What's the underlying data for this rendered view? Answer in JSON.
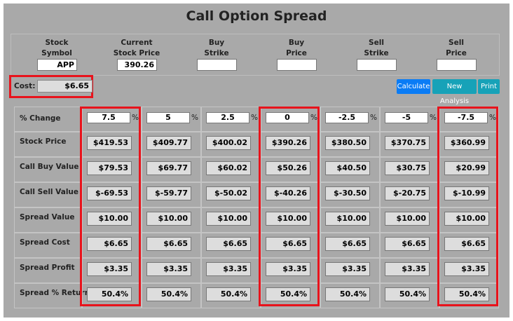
{
  "title": "Call Option Spread",
  "inputs": [
    {
      "label": [
        "Stock",
        "Symbol"
      ],
      "value": "APP"
    },
    {
      "label": [
        "Current",
        "Stock Price"
      ],
      "value": "390.26"
    },
    {
      "label": [
        "Buy",
        "Strike"
      ],
      "value": ""
    },
    {
      "label": [
        "Buy",
        "Price"
      ],
      "value": ""
    },
    {
      "label": [
        "Sell",
        "Strike"
      ],
      "value": ""
    },
    {
      "label": [
        "Sell",
        "Price"
      ],
      "value": ""
    }
  ],
  "cost": {
    "label": "Cost:",
    "value": "$6.65"
  },
  "buttons": [
    "Calculate",
    "New Analysis",
    "Print"
  ],
  "table": {
    "percent_sign": "%",
    "rows": [
      {
        "label": "% Change",
        "cells": [
          "7.5",
          "5",
          "2.5",
          "0",
          "-2.5",
          "-5",
          "-7.5"
        ]
      },
      {
        "label": "Stock Price",
        "cells": [
          "$419.53",
          "$409.77",
          "$400.02",
          "$390.26",
          "$380.50",
          "$370.75",
          "$360.99"
        ]
      },
      {
        "label": "Call Buy Value",
        "cells": [
          "$79.53",
          "$69.77",
          "$60.02",
          "$50.26",
          "$40.50",
          "$30.75",
          "$20.99"
        ]
      },
      {
        "label": "Call Sell Value",
        "cells": [
          "$-69.53",
          "$-59.77",
          "$-50.02",
          "$-40.26",
          "$-30.50",
          "$-20.75",
          "$-10.99"
        ]
      },
      {
        "label": "Spread Value",
        "cells": [
          "$10.00",
          "$10.00",
          "$10.00",
          "$10.00",
          "$10.00",
          "$10.00",
          "$10.00"
        ]
      },
      {
        "label": "Spread Cost",
        "cells": [
          "$6.65",
          "$6.65",
          "$6.65",
          "$6.65",
          "$6.65",
          "$6.65",
          "$6.65"
        ]
      },
      {
        "label": "Spread Profit",
        "cells": [
          "$3.35",
          "$3.35",
          "$3.35",
          "$3.35",
          "$3.35",
          "$3.35",
          "$3.35"
        ]
      },
      {
        "label": "Spread % Return",
        "cells": [
          "50.4%",
          "50.4%",
          "50.4%",
          "50.4%",
          "50.4%",
          "50.4%",
          "50.4%"
        ]
      }
    ]
  }
}
